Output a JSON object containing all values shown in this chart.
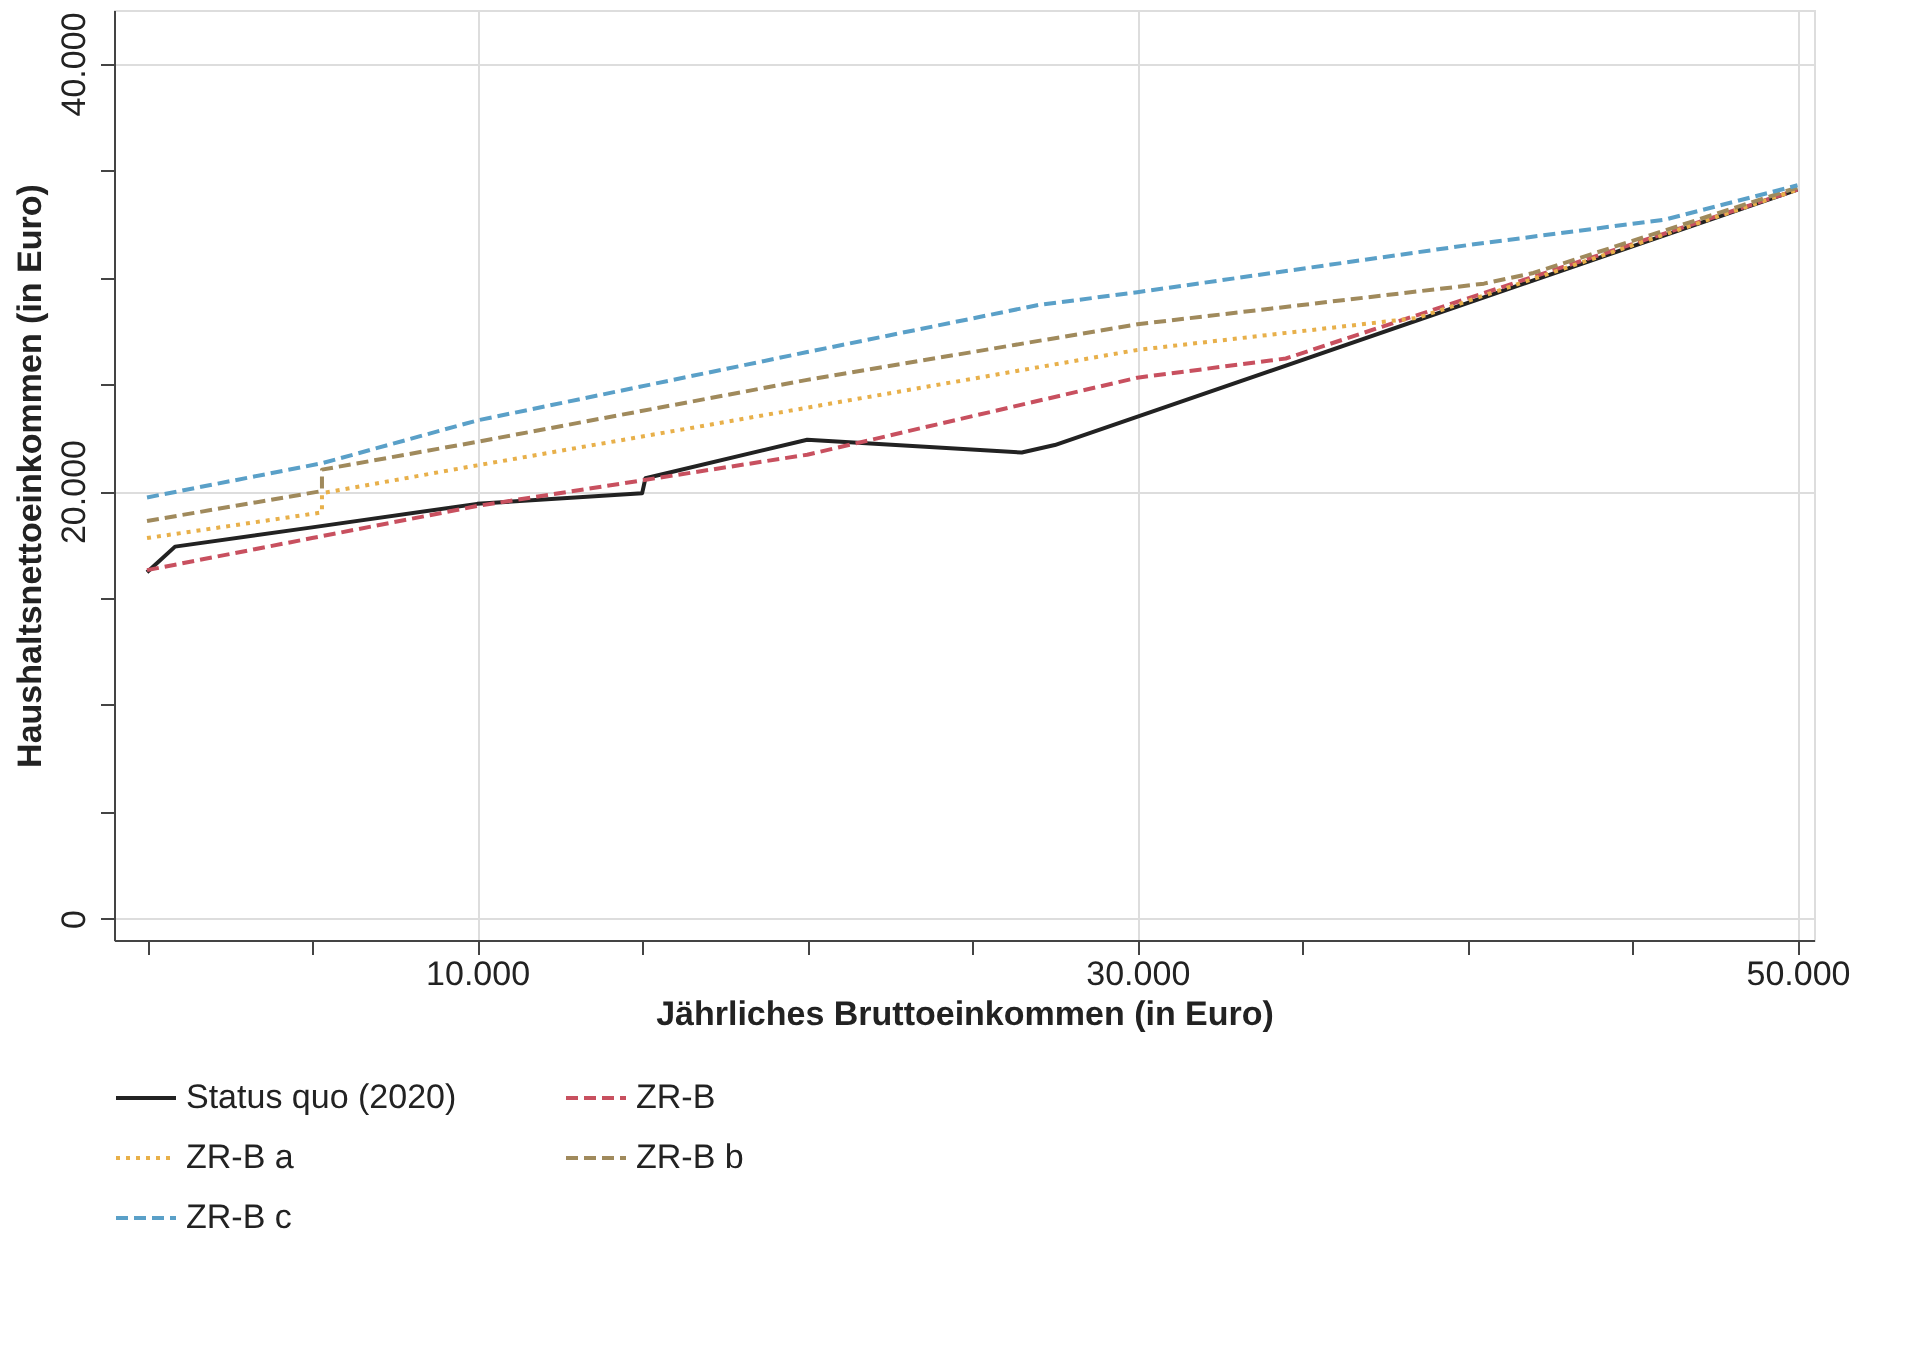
{
  "chart_data": {
    "type": "line",
    "xlabel": "Jährliches Bruttoeinkommen (in Euro)",
    "ylabel": "Haushaltsnettoeinkommen (in Euro)",
    "xlim": [
      -1000,
      50500
    ],
    "ylim": [
      -1000,
      42500
    ],
    "xticks": [
      {
        "value": 0,
        "label": null
      },
      {
        "value": 5000,
        "label": null
      },
      {
        "value": 10000,
        "label": "10.000"
      },
      {
        "value": 15000,
        "label": null
      },
      {
        "value": 20000,
        "label": null
      },
      {
        "value": 25000,
        "label": null
      },
      {
        "value": 30000,
        "label": "30.000"
      },
      {
        "value": 35000,
        "label": null
      },
      {
        "value": 40000,
        "label": null
      },
      {
        "value": 45000,
        "label": null
      },
      {
        "value": 50000,
        "label": "50.000"
      }
    ],
    "yticks": [
      {
        "value": 0,
        "label": "0"
      },
      {
        "value": 5000,
        "label": null
      },
      {
        "value": 10000,
        "label": null
      },
      {
        "value": 15000,
        "label": null
      },
      {
        "value": 20000,
        "label": "20.000"
      },
      {
        "value": 25000,
        "label": null
      },
      {
        "value": 30000,
        "label": null
      },
      {
        "value": 35000,
        "label": null
      },
      {
        "value": 40000,
        "label": "40.000"
      }
    ],
    "grid": true,
    "legend": "bottom",
    "marker": "none",
    "series": [
      {
        "name": "Status quo (2020)",
        "color": "#222222",
        "line_style": "solid",
        "x": [
          0,
          850,
          5000,
          10000,
          15000,
          15100,
          20000,
          26500,
          27500,
          50000
        ],
        "values": [
          16200,
          17400,
          18300,
          19400,
          19900,
          20600,
          22400,
          21800,
          22150,
          34100
        ]
      },
      {
        "name": "ZR-B",
        "color": "#c8505f",
        "line_style": "dashed",
        "x": [
          0,
          5000,
          10000,
          20000,
          30000,
          34500,
          50000
        ],
        "values": [
          16300,
          17800,
          19300,
          21700,
          25300,
          26200,
          34100
        ]
      },
      {
        "name": "ZR-B a",
        "color": "#e8b04a",
        "line_style": "dotted",
        "x": [
          0,
          5300,
          5300,
          10000,
          20000,
          30000,
          38500,
          50000
        ],
        "values": [
          17800,
          19000,
          19900,
          21200,
          23900,
          26600,
          28100,
          34100
        ]
      },
      {
        "name": "ZR-B b",
        "color": "#a08a5c",
        "line_style": "dashed",
        "x": [
          0,
          5300,
          5300,
          10000,
          20000,
          30000,
          40500,
          42000,
          50000
        ],
        "values": [
          18600,
          20000,
          21000,
          22300,
          25200,
          27800,
          29700,
          30200,
          34200
        ]
      },
      {
        "name": "ZR-B c",
        "color": "#5aa0c8",
        "line_style": "dashed",
        "x": [
          0,
          5300,
          10000,
          20000,
          27000,
          30000,
          40000,
          46000,
          50000
        ],
        "values": [
          19700,
          21300,
          23300,
          26500,
          28700,
          29300,
          31500,
          32700,
          34300
        ]
      }
    ]
  }
}
